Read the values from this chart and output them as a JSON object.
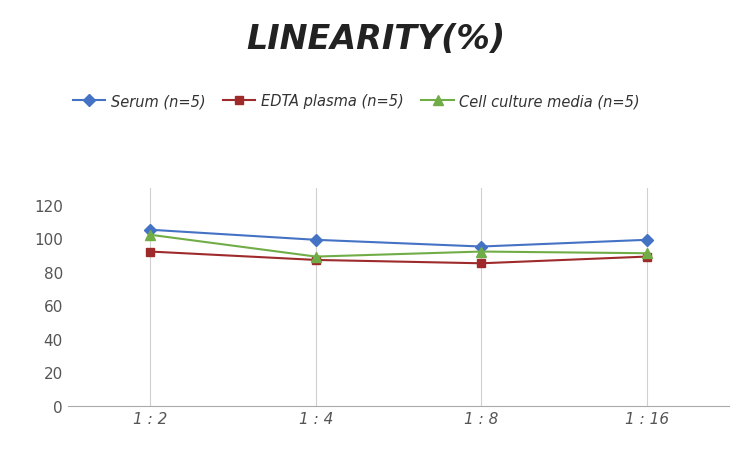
{
  "title": "LINEARITY(%)",
  "x_labels": [
    "1 : 2",
    "1 : 4",
    "1 : 8",
    "1 : 16"
  ],
  "x_positions": [
    0,
    1,
    2,
    3
  ],
  "series": [
    {
      "label": "Serum (n=5)",
      "values": [
        105,
        99,
        95,
        99
      ],
      "color": "#4472C4",
      "marker": "D",
      "linewidth": 1.5,
      "markersize": 6
    },
    {
      "label": "EDTA plasma (n=5)",
      "values": [
        92,
        87,
        85,
        89
      ],
      "color": "#9E2A2B",
      "marker": "s",
      "linewidth": 1.5,
      "markersize": 6
    },
    {
      "label": "Cell culture media (n=5)",
      "values": [
        102,
        89,
        92,
        91
      ],
      "color": "#70AD47",
      "marker": "^",
      "linewidth": 1.5,
      "markersize": 7
    }
  ],
  "ylim": [
    0,
    130
  ],
  "yticks": [
    0,
    20,
    40,
    60,
    80,
    100,
    120
  ],
  "grid_color": "#D0D0D0",
  "background_color": "#FFFFFF",
  "title_fontsize": 24,
  "title_style": "italic",
  "title_weight": "bold",
  "legend_fontsize": 10.5,
  "tick_fontsize": 11,
  "tick_color": "#555555"
}
